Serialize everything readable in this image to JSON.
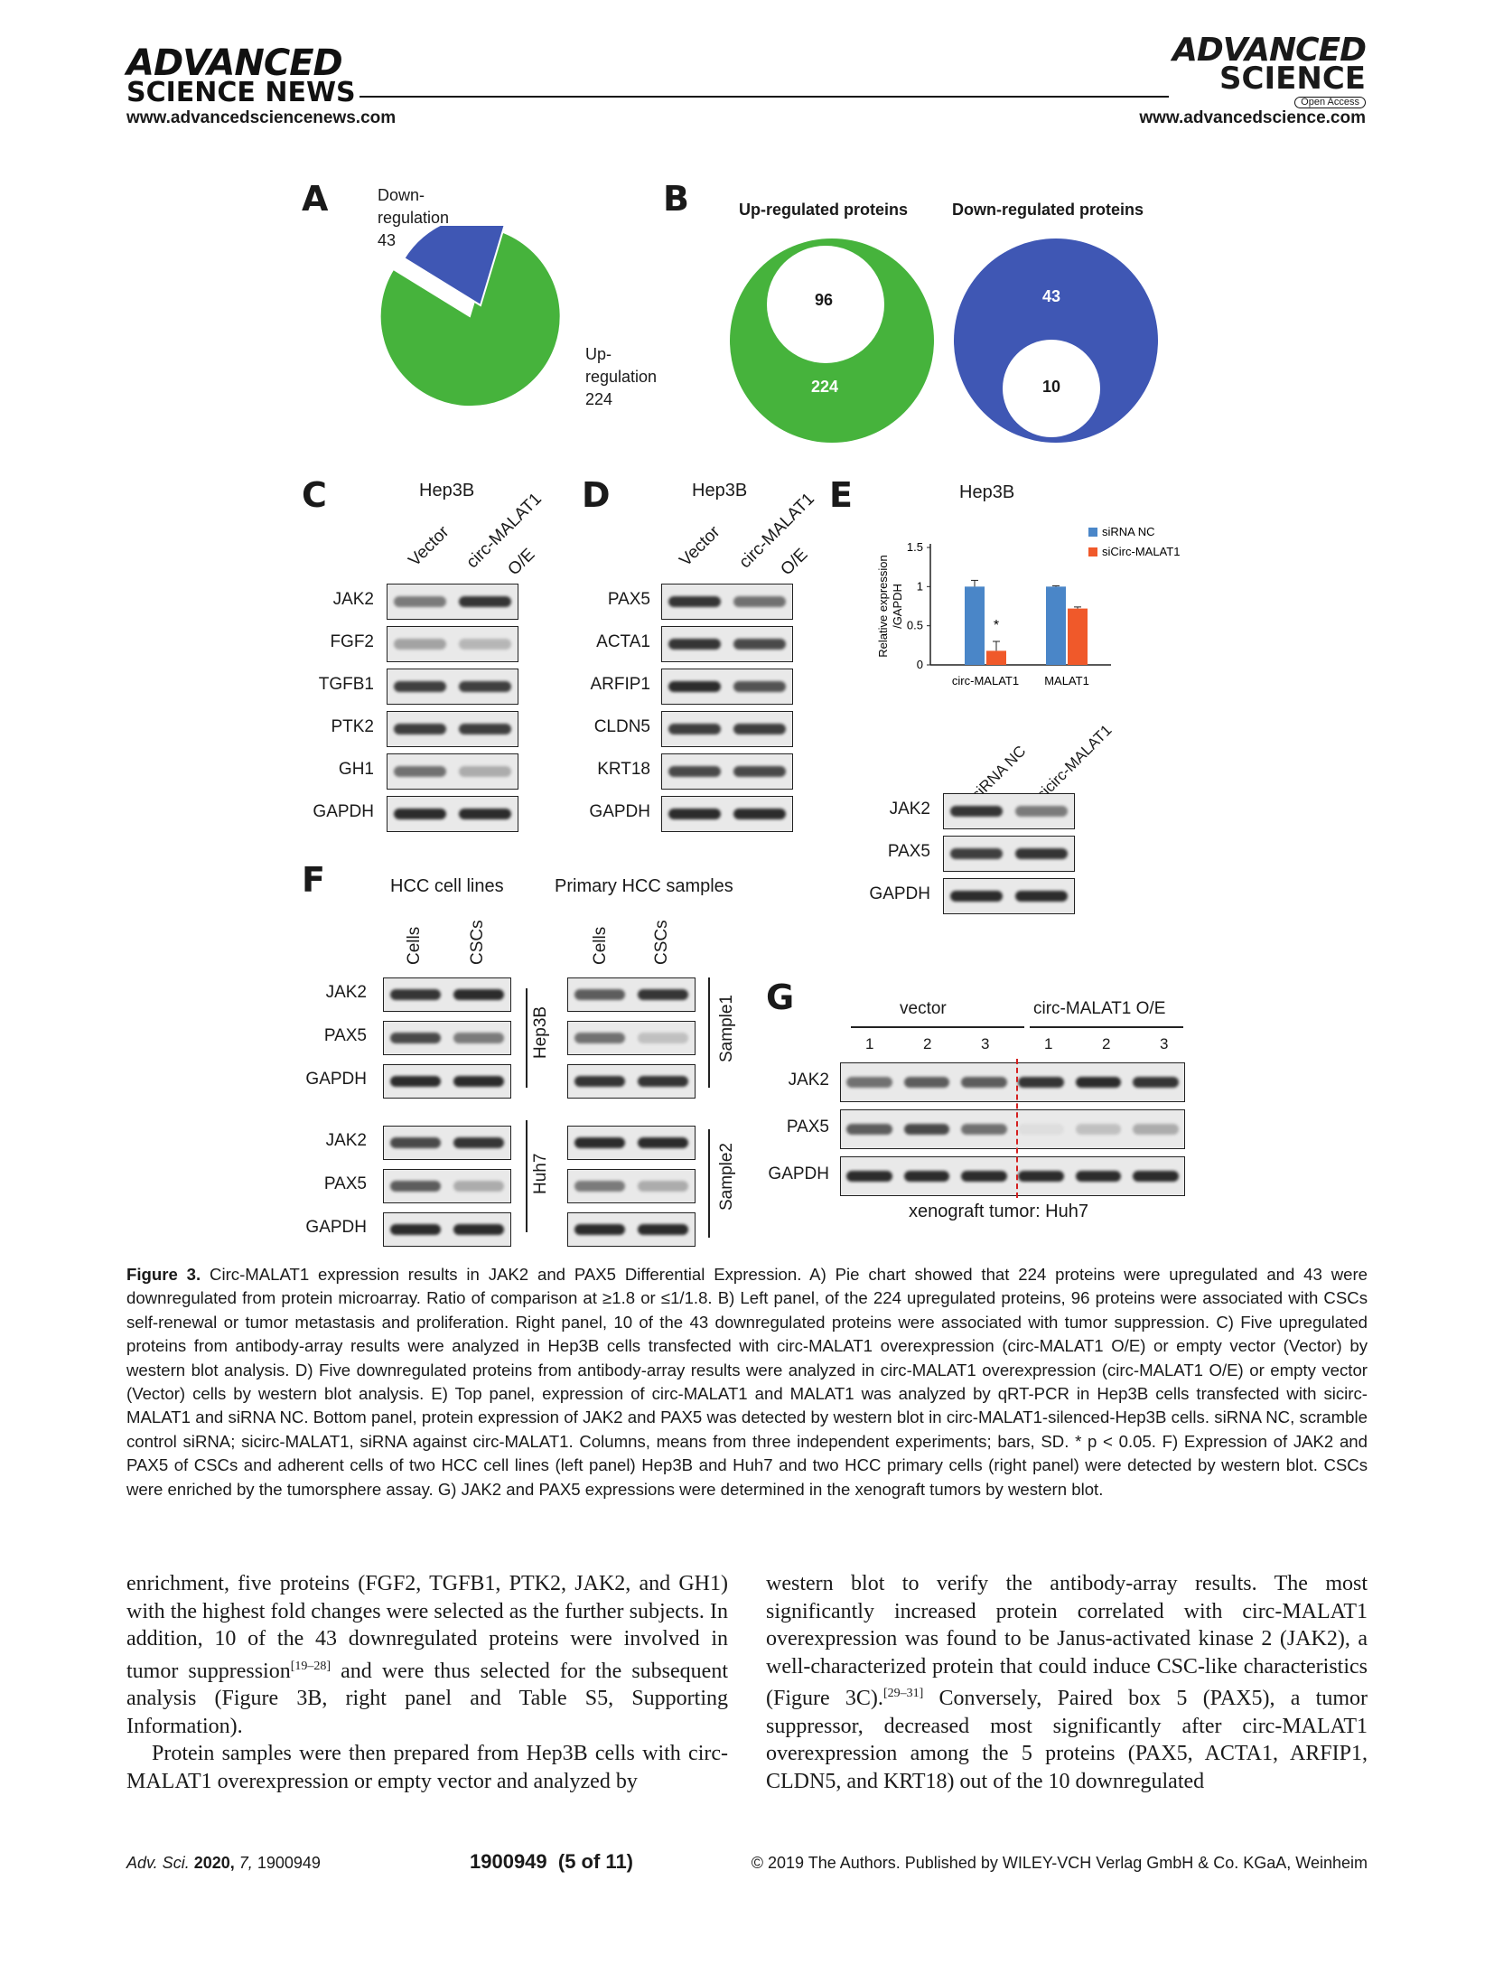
{
  "header": {
    "logo_left_line1": "ADVANCED",
    "logo_left_line2": "SCIENCE NEWS",
    "url_left": "www.advancedsciencenews.com",
    "logo_right_line1": "ADVANCED",
    "logo_right_line2": "SCIENCE",
    "open_access": "Open Access",
    "url_right": "www.advancedscience.com"
  },
  "figure": {
    "panel_a": {
      "letter": "A",
      "down_label": [
        "Down-",
        "regulation",
        "43"
      ],
      "up_label": [
        "Up-",
        "regulation",
        "224"
      ],
      "colors": {
        "up": "#46b33c",
        "down": "#3f57b4"
      }
    },
    "panel_b": {
      "letter": "B",
      "up_title": "Up-regulated proteins",
      "down_title": "Down-regulated proteins",
      "up_outer": "224",
      "up_inner": "96",
      "down_outer": "43",
      "down_inner": "10"
    },
    "panel_c": {
      "letter": "C",
      "title": "Hep3B",
      "cols": [
        "Vector",
        "circ-MALAT1",
        "O/E"
      ],
      "rows": [
        "JAK2",
        "FGF2",
        "TGFB1",
        "PTK2",
        "GH1",
        "GAPDH"
      ]
    },
    "panel_d": {
      "letter": "D",
      "title": "Hep3B",
      "cols": [
        "Vector",
        "circ-MALAT1",
        "O/E"
      ],
      "rows": [
        "PAX5",
        "ACTA1",
        "ARFIP1",
        "CLDN5",
        "KRT18",
        "GAPDH"
      ]
    },
    "panel_e": {
      "letter": "E",
      "title": "Hep3B",
      "blot_cols": [
        "siRNA NC",
        "sicirc-MALAT1"
      ],
      "blot_rows": [
        "JAK2",
        "PAX5",
        "GAPDH"
      ],
      "significance": "*"
    },
    "panel_f": {
      "letter": "F",
      "left_title": "HCC cell lines",
      "right_title": "Primary HCC samples",
      "cols": [
        "Cells",
        "CSCs"
      ],
      "rows": [
        "JAK2",
        "PAX5",
        "GAPDH"
      ],
      "left_groups": [
        "Hep3B",
        "Huh7"
      ],
      "right_groups": [
        "Sample1",
        "Sample2"
      ]
    },
    "panel_g": {
      "letter": "G",
      "group1": "vector",
      "group2": "circ-MALAT1 O/E",
      "lanes": [
        "1",
        "2",
        "3",
        "1",
        "2",
        "3"
      ],
      "rows": [
        "JAK2",
        "PAX5",
        "GAPDH"
      ],
      "footer": "xenograft tumor: Huh7"
    }
  },
  "chart_data": {
    "type": "bar",
    "categories": [
      "circ-MALAT1",
      "MALAT1"
    ],
    "series": [
      {
        "name": "siRNA NC",
        "values": [
          1.0,
          1.0
        ],
        "error": [
          0.08,
          0.01
        ],
        "color": "#4a86c8"
      },
      {
        "name": "siCirc-MALAT1",
        "values": [
          0.18,
          0.72
        ],
        "error": [
          0.12,
          0.02
        ],
        "color": "#f0592a"
      }
    ],
    "ylabel": "Relative expression /GAPDH",
    "yticks": [
      "0",
      "0.5",
      "1",
      "1.5"
    ],
    "ylim": [
      0,
      1.5
    ],
    "legend": "top-right"
  },
  "caption": {
    "label": "Figure 3.",
    "text": "Circ-MALAT1 expression results in JAK2 and PAX5 Differential Expression. A) Pie chart showed that 224 proteins were upregulated and 43 were downregulated from protein microarray. Ratio of comparison at ≥1.8 or ≤1/1.8. B) Left panel, of the 224 upregulated proteins, 96 proteins were associated with CSCs self-renewal or tumor metastasis and proliferation. Right panel, 10 of the 43 downregulated proteins were associated with tumor suppression. C) Five upregulated proteins from antibody-array results were analyzed in Hep3B cells transfected with circ-MALAT1 overexpression (circ-MALAT1 O/E) or empty vector (Vector) by western blot analysis. D) Five downregulated proteins from antibody-array results were analyzed in circ-MALAT1 overexpression (circ-MALAT1 O/E) or empty vector (Vector) cells by western blot analysis. E) Top panel, expression of circ-MALAT1 and MALAT1 was analyzed by qRT-PCR in Hep3B cells transfected with sicirc-MALAT1 and siRNA NC. Bottom panel, protein expression of JAK2 and PAX5 was detected by western blot in circ-MALAT1-silenced-Hep3B cells. siRNA NC, scramble control siRNA; sicirc-MALAT1, siRNA against circ-MALAT1. Columns, means from three independent experiments; bars, SD. * p < 0.05. F) Expression of JAK2 and PAX5 of CSCs and adherent cells of two HCC cell lines (left panel) Hep3B and Huh7 and two HCC primary cells (right panel) were detected by western blot. CSCs were enriched by the tumorsphere assay. G) JAK2 and PAX5 expressions were determined in the xenograft tumors by western blot."
  },
  "body": {
    "col1_p1": "enrichment, five proteins (FGF2, TGFB1, PTK2, JAK2, and GH1) with the highest fold changes were selected as the further subjects. In addition, 10 of the 43 downregulated proteins were involved in tumor suppression",
    "col1_p1_ref": "[19–28]",
    "col1_p1_tail": " and were thus selected for the subsequent analysis (Figure 3B, right panel and Table S5, Supporting Information).",
    "col1_p2": "Protein samples were then prepared from Hep3B cells with circ-MALAT1 overexpression or empty vector and analyzed by",
    "col2_p1": "western blot to verify the antibody-array results. The most significantly increased protein correlated with circ-MALAT1 overexpression was found to be Janus-activated kinase 2 (JAK2), a well-characterized protein that could induce CSC-like characteristics (Figure 3C).",
    "col2_p1_ref": "[29–31]",
    "col2_p1_tail": " Conversely, Paired box 5 (PAX5), a tumor suppressor, decreased most significantly after circ-MALAT1 overexpression among the 5 proteins (PAX5, ACTA1, ARFIP1, CLDN5, and KRT18) out of the 10 downregulated"
  },
  "footer": {
    "journal": "Adv. Sci.",
    "year": "2020,",
    "volume": "7,",
    "article": "1900949",
    "page": "1900949  (5 of 11)",
    "copyright": "© 2019 The Authors. Published by WILEY-VCH Verlag GmbH & Co. KGaA, Weinheim"
  }
}
